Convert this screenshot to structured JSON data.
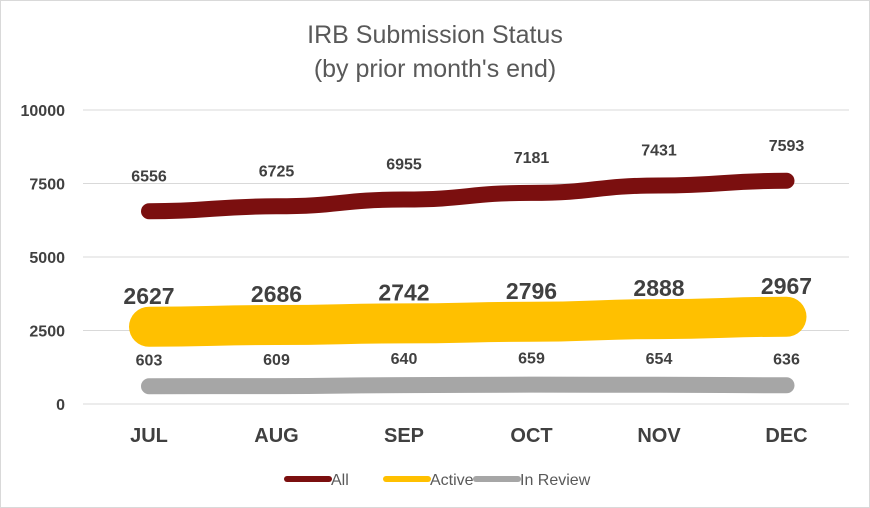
{
  "chart_data": {
    "type": "line",
    "title": [
      "IRB Submission Status",
      "(by prior month's end)"
    ],
    "categories": [
      "JUL",
      "AUG",
      "SEP",
      "OCT",
      "NOV",
      "DEC"
    ],
    "ylim": [
      0,
      10000
    ],
    "yticks": [
      0,
      2500,
      5000,
      7500,
      10000
    ],
    "grid": true,
    "legend_position": "bottom",
    "series": [
      {
        "name": "All",
        "color": "#7b0f0f",
        "values": [
          6556,
          6725,
          6955,
          7181,
          7431,
          7593
        ]
      },
      {
        "name": "Active",
        "color": "#ffc000",
        "values": [
          2627,
          2686,
          2742,
          2796,
          2888,
          2967
        ]
      },
      {
        "name": "In Review",
        "color": "#a6a6a6",
        "values": [
          603,
          609,
          640,
          659,
          654,
          636
        ]
      }
    ]
  }
}
